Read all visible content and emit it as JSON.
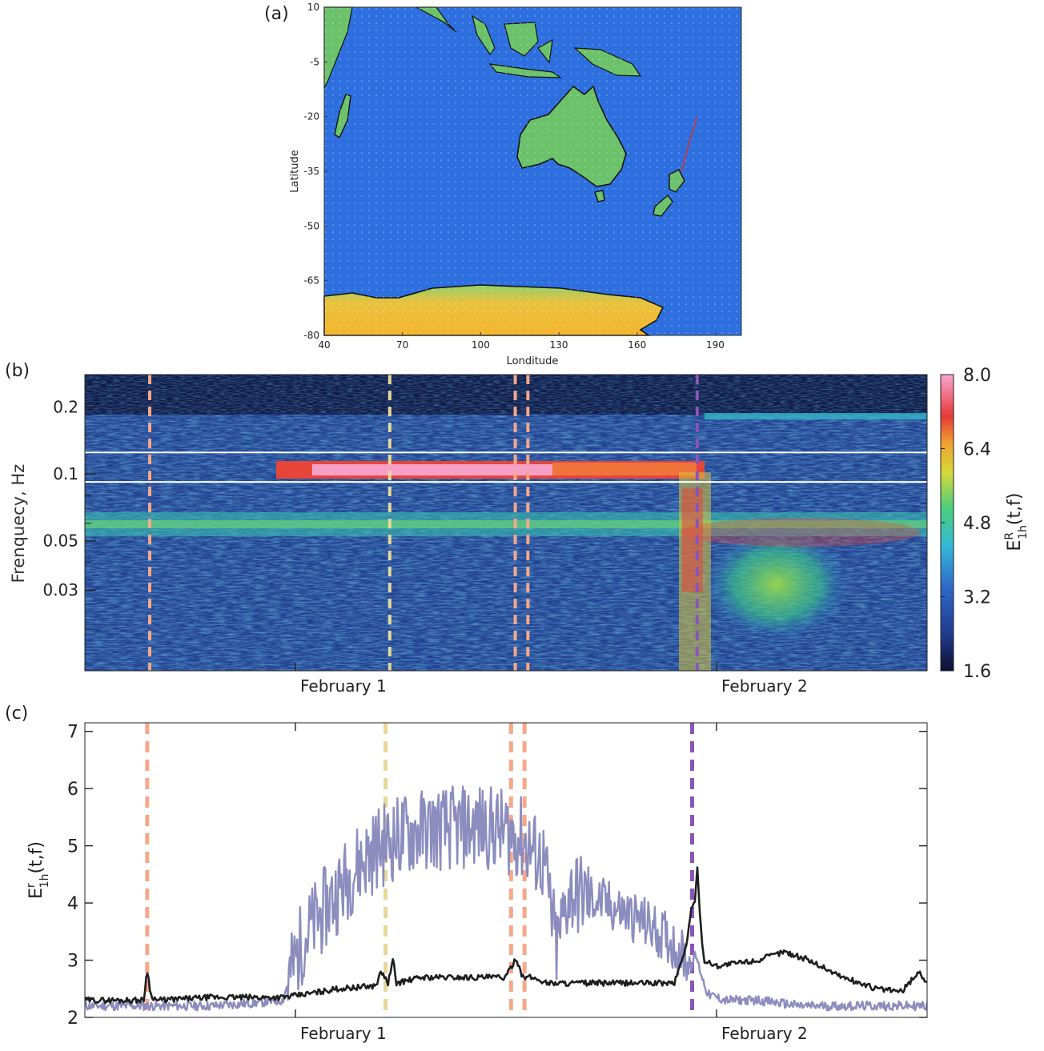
{
  "panels": {
    "a_label": "(a)",
    "b_label": "(b)",
    "c_label": "(c)"
  },
  "colors": {
    "ocean": "#2e6fe0",
    "land": "#6cc26a",
    "antarctica": "#f2b93a",
    "track": "#b0405a",
    "line_light": "#8c8cbe",
    "line_dark": "#1e1e1e",
    "marker_salmon": "#f5a88a",
    "marker_yellow": "#e8d79a",
    "marker_purple": "#8a55b8",
    "band_line": "#ffffff"
  },
  "chart_data": [
    {
      "type": "map",
      "panel": "(a)",
      "xlabel": "Londitude",
      "ylabel": "Latitude",
      "xlim": [
        40,
        200
      ],
      "ylim": [
        -80,
        10
      ],
      "x_ticks": [
        "40",
        "70",
        "100",
        "130",
        "160",
        "190"
      ],
      "x_tick_values": [
        40,
        70,
        100,
        130,
        160,
        190
      ],
      "y_ticks": [
        "10",
        "-5",
        "-20",
        "-35",
        "-50",
        "-65",
        "-80"
      ],
      "y_tick_values": [
        10,
        -5,
        -20,
        -35,
        -50,
        -65,
        -80
      ],
      "track": [
        [
          183,
          -20
        ],
        [
          180,
          -27
        ],
        [
          177,
          -35
        ]
      ]
    },
    {
      "type": "heatmap",
      "panel": "(b)",
      "ylabel": "Frenquecy, Hz",
      "y_scale": "log",
      "ylim": [
        0.013,
        0.28
      ],
      "y_ticks": [
        "0.2",
        "0.1",
        "0.05",
        "0.03"
      ],
      "y_tick_values": [
        0.2,
        0.1,
        0.05,
        0.03
      ],
      "x_ticks": [
        "February 1",
        "February 2"
      ],
      "x_tick_values": [
        0.25,
        0.75
      ],
      "colorbar": {
        "label": "E",
        "label_sup": "R",
        "label_sub": "1h",
        "label_tail": "(t,f)",
        "ticks": [
          "8.0",
          "6.4",
          "4.8",
          "3.2",
          "1.6"
        ],
        "range": [
          1.6,
          8.0
        ]
      },
      "band_lines_hz": [
        0.125,
        0.092
      ],
      "markers": [
        {
          "x": 0.077,
          "color": "salmon"
        },
        {
          "x": 0.362,
          "color": "yellow"
        },
        {
          "x": 0.511,
          "color": "salmon"
        },
        {
          "x": 0.526,
          "color": "salmon"
        },
        {
          "x": 0.727,
          "color": "purple"
        }
      ]
    },
    {
      "type": "line",
      "panel": "(c)",
      "ylabel": "E",
      "ylabel_sup": "r",
      "ylabel_sub": "1h",
      "ylabel_tail": "(t,f)",
      "ylim": [
        2,
        7.15
      ],
      "y_ticks": [
        "7",
        "6",
        "5",
        "4",
        "3",
        "2"
      ],
      "y_tick_values": [
        7,
        6,
        5,
        4,
        3,
        2
      ],
      "x_ticks": [
        "February 1",
        "February 2"
      ],
      "x_tick_values": [
        0.25,
        0.75
      ],
      "series": [
        {
          "color": "light",
          "x": [
            0.0,
            0.05,
            0.1,
            0.15,
            0.2,
            0.235,
            0.245,
            0.26,
            0.29,
            0.32,
            0.35,
            0.38,
            0.41,
            0.44,
            0.47,
            0.5,
            0.52,
            0.545,
            0.56,
            0.575,
            0.6,
            0.63,
            0.66,
            0.69,
            0.71,
            0.72,
            0.725,
            0.735,
            0.74,
            0.76,
            0.8,
            0.85,
            0.9,
            0.95,
            1.0
          ],
          "values": [
            2.2,
            2.2,
            2.2,
            2.2,
            2.25,
            2.3,
            2.8,
            3.4,
            4.0,
            4.6,
            5.0,
            5.2,
            5.3,
            5.3,
            5.35,
            5.25,
            5.1,
            4.7,
            3.2,
            4.2,
            4.1,
            3.9,
            3.7,
            3.4,
            3.1,
            2.9,
            3.1,
            2.6,
            2.4,
            2.3,
            2.3,
            2.2,
            2.2,
            2.2,
            2.2
          ]
        },
        {
          "color": "dark",
          "x": [
            0.0,
            0.07,
            0.074,
            0.078,
            0.085,
            0.15,
            0.2,
            0.235,
            0.26,
            0.3,
            0.345,
            0.352,
            0.36,
            0.366,
            0.37,
            0.4,
            0.45,
            0.5,
            0.512,
            0.52,
            0.53,
            0.55,
            0.6,
            0.65,
            0.7,
            0.715,
            0.72,
            0.724,
            0.727,
            0.73,
            0.735,
            0.75,
            0.8,
            0.83,
            0.86,
            0.9,
            0.94,
            0.97,
            0.99,
            1.0
          ],
          "values": [
            2.3,
            2.3,
            2.85,
            2.4,
            2.3,
            2.35,
            2.35,
            2.35,
            2.4,
            2.5,
            2.55,
            2.8,
            2.6,
            3.0,
            2.6,
            2.7,
            2.7,
            2.7,
            3.05,
            2.7,
            2.7,
            2.6,
            2.6,
            2.6,
            2.6,
            3.3,
            3.9,
            4.0,
            4.65,
            3.8,
            3.0,
            2.9,
            3.0,
            3.15,
            3.0,
            2.7,
            2.5,
            2.45,
            2.8,
            2.6
          ]
        }
      ],
      "markers": [
        {
          "x": 0.074,
          "color": "salmon"
        },
        {
          "x": 0.357,
          "color": "yellow"
        },
        {
          "x": 0.506,
          "color": "salmon"
        },
        {
          "x": 0.522,
          "color": "salmon"
        },
        {
          "x": 0.721,
          "color": "purple"
        }
      ]
    }
  ]
}
